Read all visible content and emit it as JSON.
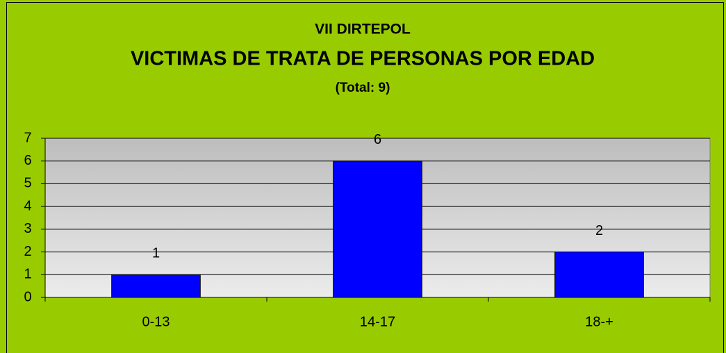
{
  "chart_data": {
    "type": "bar",
    "title": "VII DIRTEPOL",
    "subtitle": "VICTIMAS DE TRATA DE PERSONAS POR EDAD",
    "annotation": "(Total: 9)",
    "categories": [
      "0-13",
      "14-17",
      "18-+"
    ],
    "values": [
      1,
      6,
      2
    ],
    "color": "#0000ff",
    "ylim": [
      0,
      7
    ],
    "yticks": [
      0,
      1,
      2,
      3,
      4,
      5,
      6,
      7
    ],
    "grid": true
  }
}
